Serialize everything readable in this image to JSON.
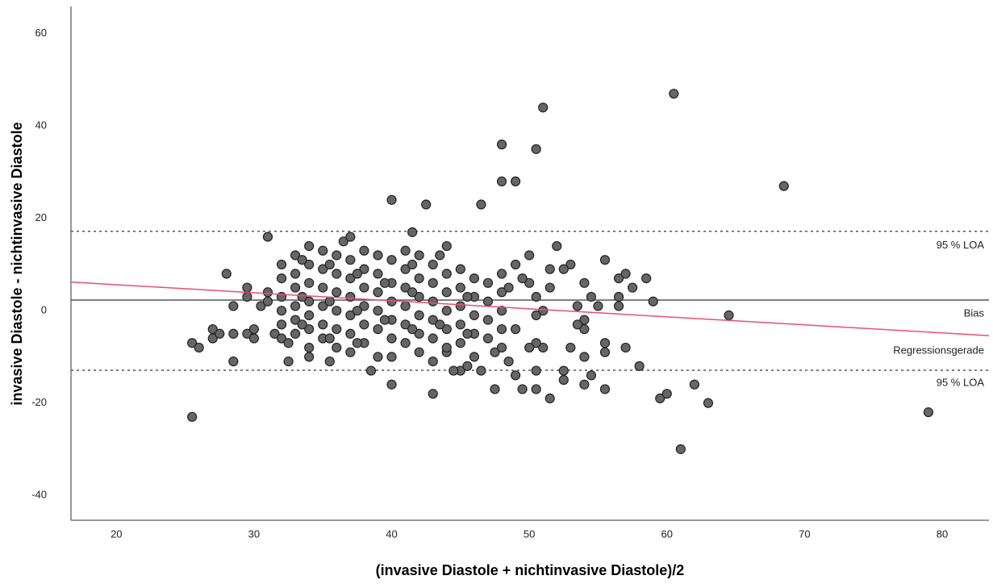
{
  "chart_data": {
    "type": "scatter",
    "x_label": "(invasive Diastole + nichtinvasive Diastole)/2",
    "y_label": "invasive Diastole - nichtinvasive Diastole",
    "xlim": [
      16.7,
      83.4
    ],
    "ylim": [
      -45.4,
      65.9
    ],
    "xticks": [
      20,
      30,
      40,
      50,
      60,
      70,
      80
    ],
    "yticks": [
      -40,
      -20,
      0,
      20,
      40,
      60
    ],
    "point_color": "#666666",
    "x": [
      25.5,
      26,
      25.5,
      27,
      27,
      27.5,
      28,
      28.5,
      28.5,
      28.5,
      29.5,
      29.5,
      29.5,
      30,
      30,
      30.5,
      31,
      31,
      31,
      31.5,
      32,
      32.5,
      32.5,
      34,
      35.5,
      36.5,
      37,
      40,
      40,
      42.5,
      43,
      41.5,
      46.5,
      48,
      48,
      49,
      50.5,
      51,
      60.5,
      68.5,
      64.5,
      79,
      61,
      63,
      62,
      59.5,
      60,
      58,
      57,
      59,
      58.5,
      57.5,
      56.5,
      56.5,
      56.5,
      57,
      55.5,
      55.5,
      55.5,
      55.5,
      55,
      54.5,
      54,
      54,
      54,
      54,
      54,
      53.5,
      53.5,
      53,
      53,
      52.5,
      52.5,
      52.5,
      52,
      51.5,
      51.5,
      51.5,
      51,
      51,
      50.5,
      50.5,
      50.5,
      50.5,
      50.5,
      50,
      50,
      50,
      49.5,
      49.5,
      49,
      49,
      49,
      48.5,
      48.5,
      48,
      47.5,
      47.5,
      46.5,
      45,
      44.5,
      45.5,
      44,
      38.5,
      54.5,
      32,
      32,
      32,
      32,
      32,
      33,
      33,
      33,
      33,
      33,
      33,
      34,
      34,
      34,
      34,
      34,
      34,
      34,
      35,
      35,
      35,
      35,
      35,
      35,
      36,
      36,
      36,
      36,
      36,
      36,
      37,
      37,
      37,
      37,
      37,
      37,
      38,
      38,
      38,
      38,
      38,
      38,
      39,
      39,
      39,
      39,
      39,
      39,
      40,
      40,
      40,
      40,
      40,
      40,
      41,
      41,
      41,
      41,
      41,
      41,
      42,
      42,
      42,
      42,
      42,
      42,
      43,
      43,
      43,
      43,
      43,
      43,
      44,
      44,
      44,
      44,
      44,
      44,
      45,
      45,
      45,
      45,
      45,
      46,
      46,
      46,
      46,
      46,
      47,
      47,
      47,
      47,
      48,
      48,
      48,
      48,
      33.5,
      33.5,
      33.5,
      35.5,
      35.5,
      35.5,
      37.5,
      37.5,
      37.5,
      39.5,
      39.5,
      41.5,
      41.5,
      41.5,
      43.5,
      43.5,
      45.5,
      45.5
    ],
    "values": [
      -7,
      -8,
      -23,
      -4,
      -6,
      -5,
      8,
      1,
      -5,
      -11,
      5,
      3,
      -5,
      -4,
      -6,
      1,
      16,
      4,
      2,
      -5,
      -6,
      -11,
      -7,
      -10,
      -11,
      15,
      16,
      24,
      -16,
      23,
      -18,
      17,
      23,
      36,
      28,
      28,
      35,
      44,
      47,
      27,
      -1,
      -22,
      -30,
      -20,
      -16,
      -19,
      -18,
      -12,
      -8,
      2,
      7,
      5,
      7,
      3,
      1,
      8,
      11,
      -7,
      -9,
      -17,
      1,
      3,
      6,
      -2,
      -4,
      -10,
      -16,
      1,
      -3,
      10,
      -8,
      9,
      -13,
      -15,
      14,
      9,
      5,
      -19,
      0,
      -8,
      3,
      -1,
      -7,
      -13,
      -17,
      12,
      6,
      -8,
      7,
      -17,
      10,
      -4,
      -14,
      5,
      -11,
      8,
      -9,
      -17,
      -13,
      -13,
      -13,
      -12,
      -9,
      -13,
      -14,
      10,
      7,
      3,
      0,
      -3,
      12,
      8,
      5,
      1,
      -2,
      -5,
      14,
      10,
      6,
      2,
      -1,
      -4,
      -8,
      13,
      9,
      5,
      1,
      -3,
      -6,
      12,
      8,
      4,
      0,
      -4,
      -8,
      11,
      7,
      3,
      -1,
      -5,
      -9,
      13,
      9,
      5,
      1,
      -3,
      -7,
      12,
      8,
      4,
      0,
      -4,
      -10,
      11,
      6,
      2,
      -2,
      -6,
      -10,
      13,
      9,
      5,
      1,
      -3,
      -7,
      12,
      7,
      3,
      -1,
      -5,
      -9,
      10,
      6,
      2,
      -2,
      -6,
      -11,
      14,
      8,
      4,
      0,
      -4,
      -8,
      9,
      5,
      1,
      -3,
      -7,
      7,
      3,
      -1,
      -5,
      -10,
      6,
      2,
      -2,
      -6,
      4,
      0,
      -4,
      -8,
      11,
      3,
      -3,
      10,
      2,
      -6,
      8,
      0,
      -7,
      6,
      -2,
      10,
      4,
      -4,
      12,
      -3,
      3,
      -5
    ],
    "reference_lines": [
      {
        "label": "95 % LOA",
        "value": 17.2,
        "style": "dashed",
        "color": "#555555"
      },
      {
        "label": "Bias",
        "value": 2.3,
        "style": "solid",
        "color": "#333333"
      },
      {
        "label": "95 % LOA",
        "value": -12.9,
        "style": "dashed",
        "color": "#555555"
      }
    ],
    "regression_line": {
      "label": "Regressionsgerade",
      "x": [
        16.7,
        83.4
      ],
      "y": [
        6.2,
        -5.4
      ],
      "color": "#e8506c"
    }
  }
}
